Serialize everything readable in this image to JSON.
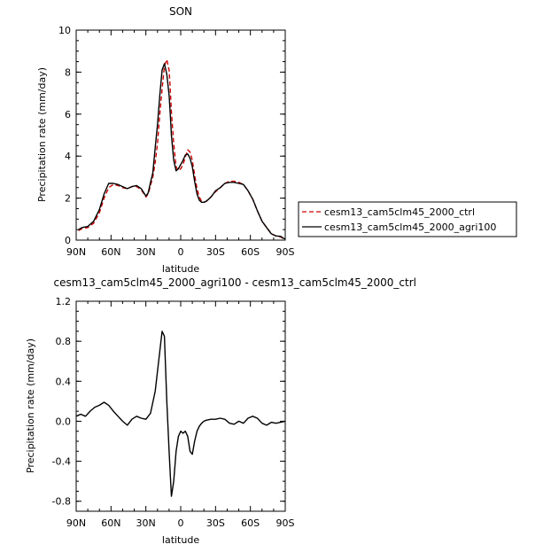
{
  "chart_data": [
    {
      "type": "line",
      "title": "SON",
      "xlabel": "latitude",
      "ylabel": "Precipitation rate (mm/day)",
      "x_reversed": true,
      "xlim": [
        90,
        -90
      ],
      "ylim": [
        0,
        10
      ],
      "xticks": [
        90,
        60,
        30,
        0,
        -30,
        -60,
        -90
      ],
      "xtick_labels": [
        "90N",
        "60N",
        "30N",
        "0",
        "30S",
        "60S",
        "90S"
      ],
      "yticks": [
        0,
        2,
        4,
        6,
        8,
        10
      ],
      "ytick_labels": [
        "0",
        "2",
        "4",
        "6",
        "8",
        "10"
      ],
      "x": [
        88,
        85,
        80,
        75,
        70,
        66,
        62,
        58,
        54,
        50,
        46,
        42,
        38,
        34,
        30,
        28,
        26,
        24,
        22,
        20,
        18,
        16,
        14,
        12,
        10,
        9,
        8,
        6,
        4,
        2,
        0,
        -2,
        -4,
        -6,
        -8,
        -10,
        -12,
        -14,
        -16,
        -18,
        -20,
        -22,
        -24,
        -26,
        -28,
        -30,
        -34,
        -38,
        -42,
        -46,
        -50,
        -54,
        -58,
        -62,
        -66,
        -70,
        -74,
        -78,
        -82,
        -86,
        -88,
        -90
      ],
      "legend_position": "right",
      "series": [
        {
          "name": "cesm13_cam5clm45_2000_ctrl",
          "color": "#cc0000",
          "dash": true,
          "values": [
            0.45,
            0.55,
            0.6,
            0.8,
            1.3,
            2.0,
            2.5,
            2.65,
            2.6,
            2.5,
            2.45,
            2.55,
            2.55,
            2.4,
            2.05,
            2.2,
            2.6,
            3.0,
            3.7,
            4.6,
            6.0,
            7.2,
            8.3,
            8.6,
            8.1,
            7.2,
            6.1,
            4.6,
            3.5,
            3.3,
            3.4,
            3.6,
            3.95,
            4.3,
            4.2,
            3.8,
            3.1,
            2.45,
            2.05,
            1.85,
            1.8,
            1.85,
            1.95,
            2.05,
            2.2,
            2.3,
            2.5,
            2.7,
            2.8,
            2.8,
            2.75,
            2.65,
            2.35,
            1.95,
            1.4,
            0.9,
            0.6,
            0.3,
            0.2,
            0.15,
            0.08,
            0.05
          ]
        },
        {
          "name": "cesm13_cam5clm45_2000_agri100",
          "color": "#000000",
          "dash": false,
          "values": [
            0.5,
            0.6,
            0.65,
            0.9,
            1.45,
            2.2,
            2.7,
            2.7,
            2.65,
            2.55,
            2.45,
            2.55,
            2.6,
            2.45,
            2.1,
            2.25,
            2.75,
            3.2,
            4.4,
            5.5,
            6.9,
            8.1,
            8.4,
            7.9,
            6.9,
            6.0,
            5.0,
            3.8,
            3.3,
            3.4,
            3.6,
            3.8,
            4.05,
            4.1,
            3.9,
            3.5,
            2.8,
            2.2,
            1.9,
            1.8,
            1.8,
            1.85,
            1.95,
            2.05,
            2.2,
            2.35,
            2.5,
            2.7,
            2.75,
            2.75,
            2.7,
            2.65,
            2.35,
            1.95,
            1.4,
            0.9,
            0.6,
            0.3,
            0.2,
            0.18,
            0.1,
            0.05
          ]
        }
      ]
    },
    {
      "type": "line",
      "title": "cesm13_cam5clm45_2000_agri100 - cesm13_cam5clm45_2000_ctrl",
      "xlabel": "latitude",
      "ylabel": "Precipitation rate (mm/day)",
      "x_reversed": true,
      "xlim": [
        90,
        -90
      ],
      "ylim": [
        -0.9,
        1.2
      ],
      "xticks": [
        90,
        60,
        30,
        0,
        -30,
        -60,
        -90
      ],
      "xtick_labels": [
        "90N",
        "60N",
        "30N",
        "0",
        "30S",
        "60S",
        "90S"
      ],
      "yticks": [
        -0.8,
        -0.4,
        0.0,
        0.4,
        0.8,
        1.2
      ],
      "ytick_labels": [
        "-0.8",
        "-0.4",
        "0.0",
        "0.4",
        "0.8",
        "1.2"
      ],
      "x": [
        90,
        86,
        82,
        78,
        74,
        70,
        66,
        62,
        58,
        54,
        50,
        46,
        42,
        38,
        34,
        30,
        26,
        22,
        18,
        16,
        14,
        12,
        10,
        8,
        6,
        4,
        2,
        0,
        -2,
        -4,
        -6,
        -8,
        -10,
        -12,
        -14,
        -16,
        -18,
        -20,
        -22,
        -26,
        -30,
        -34,
        -38,
        -42,
        -46,
        -50,
        -54,
        -58,
        -62,
        -66,
        -70,
        -74,
        -78,
        -82,
        -86,
        -90
      ],
      "series": [
        {
          "color": "#000000",
          "dash": false,
          "values": [
            0.05,
            0.07,
            0.05,
            0.1,
            0.14,
            0.16,
            0.19,
            0.16,
            0.1,
            0.05,
            0.0,
            -0.04,
            0.02,
            0.05,
            0.03,
            0.02,
            0.08,
            0.3,
            0.7,
            0.9,
            0.85,
            0.2,
            -0.3,
            -0.75,
            -0.6,
            -0.3,
            -0.15,
            -0.1,
            -0.12,
            -0.1,
            -0.15,
            -0.3,
            -0.33,
            -0.2,
            -0.1,
            -0.05,
            -0.02,
            0.0,
            0.01,
            0.02,
            0.02,
            0.03,
            0.02,
            -0.02,
            -0.03,
            0.0,
            -0.02,
            0.03,
            0.05,
            0.03,
            -0.02,
            -0.04,
            -0.01,
            -0.02,
            -0.01,
            0.0
          ]
        }
      ]
    }
  ]
}
